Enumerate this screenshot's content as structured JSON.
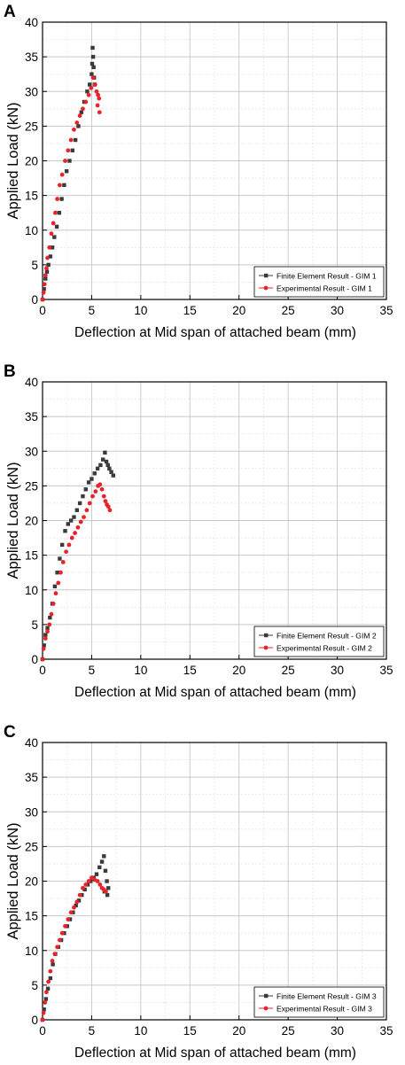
{
  "figure": {
    "panel_letters": [
      "A",
      "B",
      "C"
    ]
  },
  "colors": {
    "fe_series": "#3a3a3a",
    "exp_series": "#e8232a",
    "grid_major": "#c8c8c8",
    "grid_minor": "#e6e6e6",
    "axis": "#000000"
  },
  "chart_data": [
    {
      "type": "scatter",
      "panel": "A",
      "xlabel": "Deflection at Mid span of attached beam (mm)",
      "ylabel": "Applied Load (kN)",
      "xlim": [
        0,
        35
      ],
      "ylim": [
        0,
        40
      ],
      "xticks": [
        "0",
        "5",
        "10",
        "15",
        "20",
        "25",
        "30",
        "35"
      ],
      "yticks": [
        "0",
        "5",
        "10",
        "15",
        "20",
        "25",
        "30",
        "35",
        "40"
      ],
      "grid": true,
      "legend_position": "bottom-right",
      "series": [
        {
          "name": "Finite Element Result - GIM 1",
          "marker": "square",
          "color": "#3a3a3a",
          "x": [
            0.0,
            0.15,
            0.3,
            0.45,
            0.6,
            0.8,
            1.0,
            1.2,
            1.45,
            1.7,
            1.95,
            2.2,
            2.45,
            2.75,
            3.05,
            3.35,
            3.65,
            3.95,
            4.25,
            4.55,
            4.8,
            5.0,
            5.05,
            5.1,
            5.15,
            5.2,
            5.25,
            5.3
          ],
          "y": [
            0.0,
            1.5,
            3.0,
            4.0,
            5.0,
            6.2,
            7.5,
            9.0,
            10.5,
            12.5,
            14.5,
            16.5,
            18.5,
            20.0,
            21.5,
            23.0,
            25.0,
            27.0,
            28.5,
            30.0,
            31.0,
            32.5,
            34.0,
            36.3,
            35.0,
            33.5,
            32.0,
            31.0
          ]
        },
        {
          "name": "Experimental Result - GIM 1",
          "marker": "circle",
          "color": "#e8232a",
          "x": [
            0.0,
            0.1,
            0.2,
            0.3,
            0.4,
            0.5,
            0.7,
            0.9,
            1.1,
            1.3,
            1.5,
            1.75,
            2.0,
            2.3,
            2.6,
            2.9,
            3.2,
            3.5,
            3.8,
            4.1,
            4.4,
            4.7,
            4.95,
            5.15,
            5.35,
            5.5,
            5.65,
            5.75,
            5.6,
            5.8
          ],
          "y": [
            0.0,
            1.0,
            2.2,
            3.5,
            4.5,
            6.0,
            7.5,
            9.5,
            11.0,
            12.5,
            14.5,
            16.5,
            18.0,
            20.0,
            21.5,
            23.0,
            24.5,
            25.5,
            26.5,
            27.5,
            28.5,
            29.5,
            30.5,
            32.0,
            31.0,
            30.0,
            29.5,
            29.0,
            28.0,
            27.0
          ]
        }
      ]
    },
    {
      "type": "scatter",
      "panel": "B",
      "xlabel": "Deflection at Mid span of attached beam (mm)",
      "ylabel": "Applied Load (kN)",
      "xlim": [
        0,
        35
      ],
      "ylim": [
        0,
        40
      ],
      "xticks": [
        "0",
        "5",
        "10",
        "15",
        "20",
        "25",
        "30",
        "35"
      ],
      "yticks": [
        "0",
        "5",
        "10",
        "15",
        "20",
        "25",
        "30",
        "35",
        "40"
      ],
      "grid": true,
      "legend_position": "bottom-right",
      "series": [
        {
          "name": "Finite Element Result - GIM 2",
          "marker": "square",
          "color": "#3a3a3a",
          "x": [
            0.0,
            0.15,
            0.3,
            0.5,
            0.75,
            1.0,
            1.25,
            1.5,
            1.75,
            2.0,
            2.3,
            2.6,
            2.9,
            3.2,
            3.5,
            3.8,
            4.1,
            4.4,
            4.7,
            5.0,
            5.3,
            5.6,
            5.9,
            6.15,
            6.35,
            6.5,
            6.65,
            6.8,
            7.0,
            7.2
          ],
          "y": [
            0.0,
            2.0,
            3.5,
            4.5,
            6.0,
            8.0,
            10.5,
            12.5,
            14.5,
            16.5,
            18.5,
            19.5,
            20.0,
            20.5,
            21.5,
            22.5,
            23.5,
            24.5,
            25.5,
            26.0,
            26.8,
            27.5,
            28.0,
            28.8,
            29.8,
            28.5,
            28.0,
            27.5,
            27.0,
            26.5
          ]
        },
        {
          "name": "Experimental Result - GIM 2",
          "marker": "circle",
          "color": "#e8232a",
          "x": [
            0.0,
            0.1,
            0.3,
            0.5,
            0.7,
            0.9,
            1.1,
            1.35,
            1.6,
            1.85,
            2.1,
            2.4,
            2.7,
            3.0,
            3.3,
            3.6,
            3.9,
            4.2,
            4.5,
            4.8,
            5.1,
            5.4,
            5.65,
            5.85,
            6.05,
            6.25,
            6.4,
            6.55,
            6.7,
            6.85
          ],
          "y": [
            0.0,
            1.5,
            3.0,
            4.0,
            5.0,
            6.5,
            8.0,
            9.5,
            11.0,
            12.5,
            14.0,
            15.5,
            16.5,
            17.5,
            18.2,
            19.0,
            19.8,
            20.5,
            21.5,
            22.5,
            23.5,
            24.2,
            25.0,
            25.2,
            24.5,
            23.5,
            22.8,
            22.3,
            22.0,
            21.5
          ]
        }
      ]
    },
    {
      "type": "scatter",
      "panel": "C",
      "xlabel": "Deflection at Mid span of attached beam (mm)",
      "ylabel": "Applied Load (kN)",
      "xlim": [
        0,
        35
      ],
      "ylim": [
        0,
        40
      ],
      "xticks": [
        "0",
        "5",
        "10",
        "15",
        "20",
        "25",
        "30",
        "35"
      ],
      "yticks": [
        "0",
        "5",
        "10",
        "15",
        "20",
        "25",
        "30",
        "35",
        "40"
      ],
      "grid": true,
      "legend_position": "bottom-right",
      "series": [
        {
          "name": "Finite Element Result - GIM 3",
          "marker": "square",
          "color": "#3a3a3a",
          "x": [
            0.0,
            0.15,
            0.35,
            0.55,
            0.8,
            1.05,
            1.3,
            1.6,
            1.9,
            2.2,
            2.5,
            2.8,
            3.1,
            3.4,
            3.7,
            4.0,
            4.3,
            4.6,
            4.9,
            5.2,
            5.5,
            5.8,
            6.05,
            6.25,
            6.4,
            6.55,
            6.7,
            6.3,
            6.6
          ],
          "y": [
            0.0,
            1.5,
            3.0,
            4.5,
            6.0,
            8.0,
            9.5,
            10.5,
            11.5,
            12.5,
            13.5,
            14.5,
            15.5,
            16.5,
            17.2,
            18.0,
            18.8,
            19.5,
            20.0,
            20.5,
            21.0,
            22.0,
            22.8,
            23.6,
            21.5,
            20.0,
            19.0,
            18.5,
            18.0
          ]
        },
        {
          "name": "Experimental Result - GIM 3",
          "marker": "circle",
          "color": "#e8232a",
          "x": [
            0.0,
            0.1,
            0.25,
            0.4,
            0.6,
            0.8,
            1.0,
            1.25,
            1.5,
            1.75,
            2.0,
            2.3,
            2.6,
            2.9,
            3.2,
            3.5,
            3.8,
            4.1,
            4.4,
            4.7,
            5.0,
            5.3,
            5.6,
            5.85,
            6.05,
            6.25,
            6.45
          ],
          "y": [
            0.0,
            1.0,
            2.5,
            4.0,
            5.5,
            7.0,
            8.5,
            9.5,
            10.5,
            11.5,
            12.5,
            13.5,
            14.5,
            15.5,
            16.2,
            17.0,
            18.0,
            19.0,
            19.5,
            20.0,
            20.5,
            20.2,
            20.0,
            19.5,
            19.0,
            18.8,
            18.5
          ]
        }
      ]
    }
  ]
}
